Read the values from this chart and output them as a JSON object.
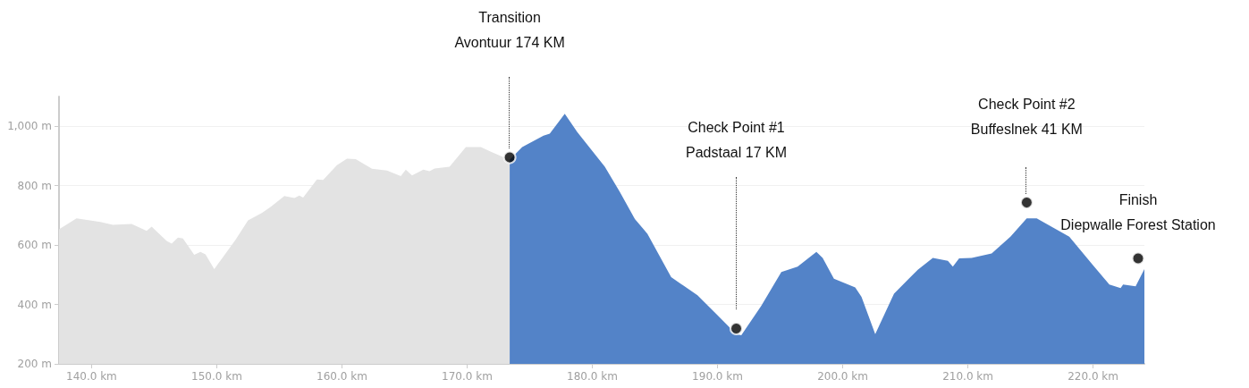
{
  "chart_data": {
    "type": "area",
    "xlim": [
      137.4,
      224.1
    ],
    "xticks": [
      {
        "value": 140,
        "label": "140.0 km"
      },
      {
        "value": 150,
        "label": "150.0 km"
      },
      {
        "value": 160,
        "label": "160.0 km"
      },
      {
        "value": 170,
        "label": "170.0 km"
      },
      {
        "value": 180,
        "label": "180.0 km"
      },
      {
        "value": 190,
        "label": "190.0 km"
      },
      {
        "value": 200,
        "label": "200.0 km"
      },
      {
        "value": 210,
        "label": "210.0 km"
      },
      {
        "value": 220,
        "label": "220.0 km"
      }
    ],
    "ylim": [
      200,
      1100
    ],
    "yticks": [
      {
        "value": 200,
        "label": "200 m"
      },
      {
        "value": 400,
        "label": "400 m"
      },
      {
        "value": 600,
        "label": "600 m"
      },
      {
        "value": 800,
        "label": "800 m"
      },
      {
        "value": 1000,
        "label": "1,000 m"
      }
    ],
    "grid": "y",
    "series": [
      {
        "color": "#e3e3e3",
        "x": [
          137.4,
          138.8,
          140.7,
          141.7,
          143.2,
          144.4,
          144.8,
          146.0,
          146.4,
          146.9,
          147.3,
          148.2,
          148.7,
          149.1,
          149.8,
          151.5,
          152.5,
          153.6,
          154.3,
          155.4,
          156.2,
          156.6,
          156.9,
          158.0,
          158.5,
          159.6,
          160.4,
          161.1,
          162.4,
          163.6,
          164.7,
          165.1,
          165.6,
          166.5,
          167.0,
          167.4,
          168.6,
          169.9,
          171.1,
          171.9,
          173.4
        ],
        "values": [
          653,
          690,
          678,
          668,
          671,
          648,
          662,
          614,
          605,
          625,
          622,
          567,
          577,
          569,
          519,
          618,
          683,
          708,
          728,
          765,
          758,
          767,
          760,
          821,
          819,
          869,
          891,
          889,
          857,
          851,
          832,
          854,
          834,
          854,
          849,
          858,
          864,
          930,
          930,
          914,
          887
        ]
      },
      {
        "color": "#5383c8",
        "x": [
          173.4,
          174.4,
          175.3,
          176.1,
          176.6,
          177.8,
          178.8,
          181.0,
          182.2,
          183.4,
          184.4,
          186.3,
          188.4,
          189.8,
          191.5,
          191.9,
          193.5,
          195.1,
          196.4,
          197.9,
          198.4,
          199.3,
          201.0,
          201.5,
          202.6,
          204.1,
          206.0,
          207.2,
          208.4,
          208.8,
          209.3,
          210.3,
          211.9,
          213.4,
          214.7,
          215.5,
          218.1,
          220.0,
          221.3,
          222.2,
          222.4,
          223.4,
          224.1
        ],
        "values": [
          887,
          930,
          950,
          968,
          975,
          1042,
          980,
          864,
          779,
          688,
          638,
          492,
          431,
          372,
          300,
          296,
          396,
          509,
          527,
          577,
          557,
          487,
          457,
          426,
          300,
          436,
          517,
          557,
          547,
          527,
          555,
          557,
          572,
          628,
          690,
          690,
          628,
          532,
          467,
          455,
          467,
          461,
          519
        ]
      },
      {
        "type": "scatter",
        "color": "#000000",
        "marker": "circle",
        "x": [
          173.4,
          191.5,
          214.7,
          223.6
        ],
        "values": [
          895,
          319,
          743,
          555
        ]
      }
    ],
    "annotations": [
      "Transition\nAvontuur 174 KM",
      "Check Point #1\nPadstaal 17 KM",
      "Check Point #2\nBuffeslnek 41 KM",
      "Finish\nDiepwalle Forest Station"
    ]
  }
}
